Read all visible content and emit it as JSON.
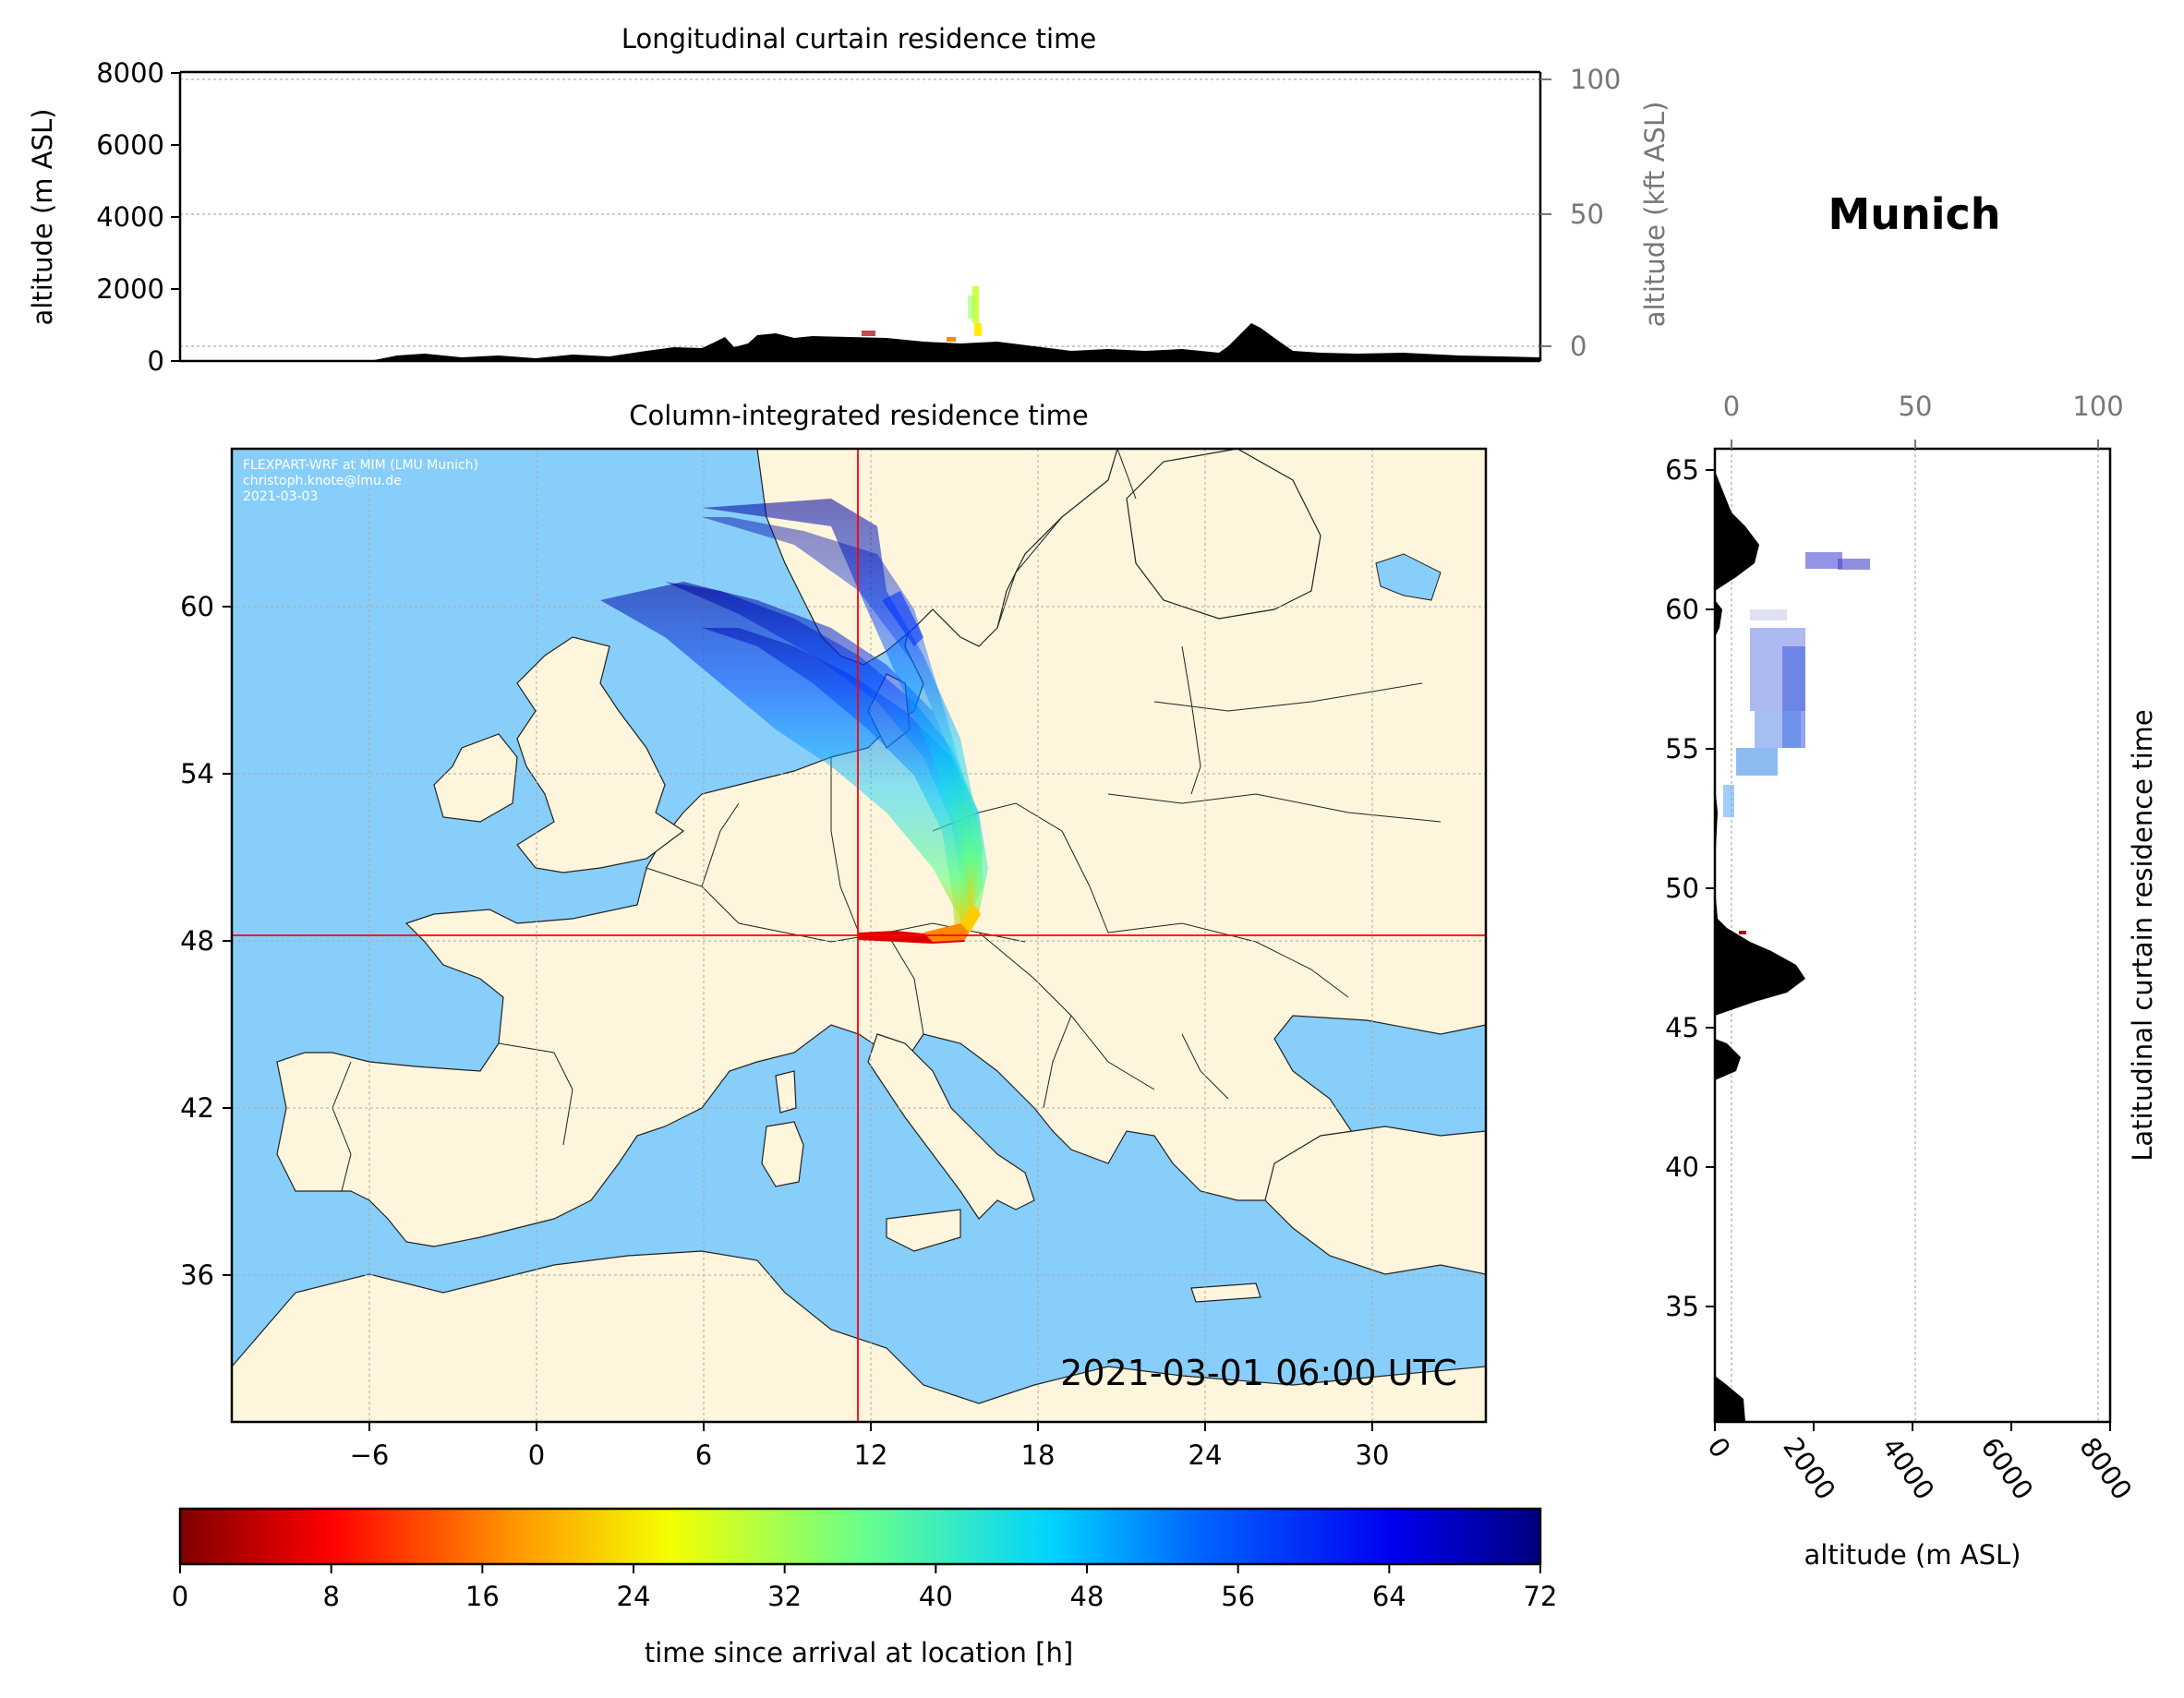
{
  "top_panel": {
    "title": "Longitudinal curtain residence time",
    "ylabel_left": "altitude (m ASL)",
    "ylabel_right": "altitude (kft ASL)",
    "yticks_left": [
      "0",
      "2000",
      "4000",
      "6000",
      "8000"
    ],
    "yticks_right": [
      "0",
      "50",
      "100"
    ]
  },
  "map_panel": {
    "title": "Column-integrated residence time",
    "credit_lines": [
      "FLEXPART-WRF at MIM (LMU Munich)",
      "christoph.knote@lmu.de",
      "2021-03-03"
    ],
    "timestamp": "2021-03-01 06:00 UTC",
    "lon_ticks": [
      "−6",
      "0",
      "6",
      "12",
      "18",
      "24",
      "30"
    ],
    "lat_ticks": [
      "60",
      "54",
      "48",
      "42",
      "36"
    ],
    "receptor": {
      "lon": 11.6,
      "lat": 48.1
    },
    "colors": {
      "ocean": "#87cefa",
      "land": "#fdf5dc",
      "crosshair": "#ff0000"
    }
  },
  "location_title": "Munich",
  "right_panel": {
    "ylabel": "Latitudinal curtain residence time",
    "xlabel": "altitude (m ASL)",
    "xticks_bottom": [
      "0",
      "2000",
      "4000",
      "6000",
      "8000"
    ],
    "xticks_top": [
      "0",
      "50",
      "100"
    ],
    "yticks": [
      "65",
      "60",
      "55",
      "50",
      "45",
      "40",
      "35"
    ]
  },
  "colorbar": {
    "label": "time since arrival at location [h]",
    "ticks": [
      "0",
      "8",
      "16",
      "24",
      "32",
      "40",
      "48",
      "56",
      "64",
      "72"
    ],
    "range": [
      0,
      72
    ],
    "colormap": "jet_r"
  }
}
